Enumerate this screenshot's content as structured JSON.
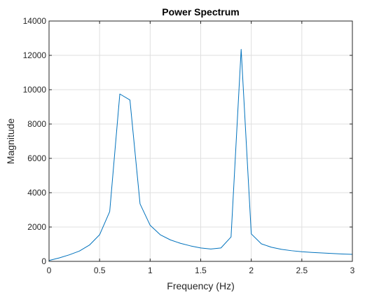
{
  "chart_data": {
    "type": "line",
    "title": "Power Spectrum",
    "xlabel": "Frequency (Hz)",
    "ylabel": "Magnitude",
    "xlim": [
      0,
      3
    ],
    "ylim": [
      0,
      14000
    ],
    "grid": true,
    "x_ticks": [
      0,
      0.5,
      1,
      1.5,
      2,
      2.5,
      3
    ],
    "x_tick_labels": [
      "0",
      "0.5",
      "1",
      "1.5",
      "2",
      "2.5",
      "3"
    ],
    "y_ticks": [
      0,
      2000,
      4000,
      6000,
      8000,
      10000,
      12000,
      14000
    ],
    "y_tick_labels": [
      "0",
      "2000",
      "4000",
      "6000",
      "8000",
      "10000",
      "12000",
      "14000"
    ],
    "series": [
      {
        "color": "#0072bd",
        "x": [
          0,
          0.1,
          0.2,
          0.3,
          0.4,
          0.5,
          0.6,
          0.7,
          0.8,
          0.9,
          1.0,
          1.1,
          1.2,
          1.3,
          1.4,
          1.5,
          1.6,
          1.7,
          1.8,
          1.9,
          2.0,
          2.1,
          2.2,
          2.3,
          2.4,
          2.5,
          2.6,
          2.7,
          2.8,
          2.9,
          3.0
        ],
        "y": [
          50,
          200,
          380,
          600,
          950,
          1550,
          2900,
          9750,
          9400,
          3350,
          2100,
          1550,
          1250,
          1050,
          900,
          780,
          720,
          780,
          1420,
          12350,
          1600,
          1020,
          820,
          700,
          620,
          560,
          520,
          490,
          460,
          430,
          410
        ]
      }
    ]
  }
}
